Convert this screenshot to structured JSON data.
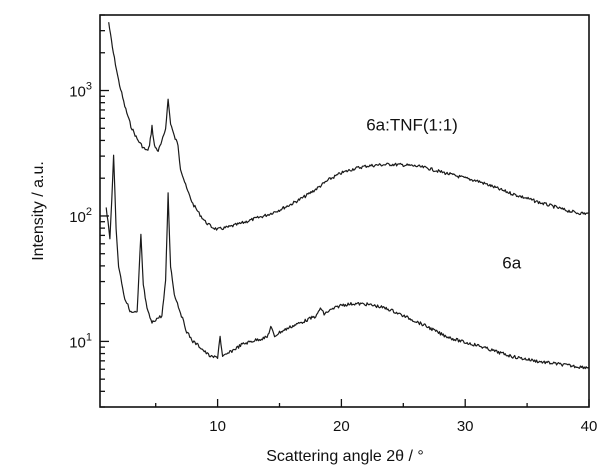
{
  "chart_data": {
    "type": "line",
    "xlabel": "Scattering angle 2θ / °",
    "ylabel": "Intensity / a.u.",
    "xlim": [
      0.5,
      40
    ],
    "ylim": [
      3,
      4000
    ],
    "yscale": "log",
    "grid": false,
    "x_ticks": [
      10,
      20,
      30,
      40
    ],
    "x_tick_labels": [
      "10",
      "20",
      "30",
      "40"
    ],
    "y_ticks": [
      10,
      100,
      1000
    ],
    "y_tick_labels": [
      {
        "base": "10",
        "exp": "1"
      },
      {
        "base": "10",
        "exp": "2"
      },
      {
        "base": "10",
        "exp": "3"
      }
    ],
    "series": [
      {
        "name": "6a:TNF(1:1)",
        "label_at": [
          22,
          480
        ],
        "points": [
          [
            1.2,
            3500
          ],
          [
            1.5,
            2200
          ],
          [
            2.0,
            1200
          ],
          [
            2.5,
            750
          ],
          [
            3.0,
            520
          ],
          [
            3.5,
            410
          ],
          [
            4.0,
            350
          ],
          [
            4.3,
            330
          ],
          [
            4.5,
            360
          ],
          [
            4.7,
            520
          ],
          [
            4.9,
            360
          ],
          [
            5.2,
            330
          ],
          [
            5.5,
            390
          ],
          [
            5.8,
            500
          ],
          [
            6.0,
            850
          ],
          [
            6.2,
            550
          ],
          [
            6.5,
            430
          ],
          [
            6.8,
            370
          ],
          [
            7.0,
            240
          ],
          [
            7.5,
            165
          ],
          [
            8.0,
            125
          ],
          [
            8.5,
            105
          ],
          [
            9.0,
            90
          ],
          [
            9.5,
            82
          ],
          [
            10,
            78
          ],
          [
            11,
            82
          ],
          [
            12,
            88
          ],
          [
            13,
            95
          ],
          [
            14,
            102
          ],
          [
            15,
            112
          ],
          [
            16,
            125
          ],
          [
            17,
            142
          ],
          [
            18,
            165
          ],
          [
            19,
            195
          ],
          [
            20,
            220
          ],
          [
            21,
            238
          ],
          [
            22,
            250
          ],
          [
            23,
            255
          ],
          [
            24,
            258
          ],
          [
            25,
            255
          ],
          [
            26,
            250
          ],
          [
            27,
            240
          ],
          [
            28,
            225
          ],
          [
            29,
            212
          ],
          [
            30,
            200
          ],
          [
            31,
            190
          ],
          [
            32,
            175
          ],
          [
            33,
            160
          ],
          [
            34,
            148
          ],
          [
            35,
            138
          ],
          [
            36,
            128
          ],
          [
            37,
            120
          ],
          [
            38,
            112
          ],
          [
            39,
            106
          ],
          [
            40,
            104
          ]
        ]
      },
      {
        "name": "6a",
        "label_at": [
          33,
          38
        ],
        "points": [
          [
            1.0,
            120
          ],
          [
            1.3,
            65
          ],
          [
            1.6,
            300
          ],
          [
            1.8,
            80
          ],
          [
            2.0,
            40
          ],
          [
            2.5,
            22
          ],
          [
            3.0,
            17
          ],
          [
            3.5,
            17
          ],
          [
            3.8,
            70
          ],
          [
            4.0,
            28
          ],
          [
            4.3,
            18
          ],
          [
            4.7,
            14
          ],
          [
            5.0,
            15
          ],
          [
            5.5,
            16
          ],
          [
            5.8,
            30
          ],
          [
            6.0,
            150
          ],
          [
            6.2,
            40
          ],
          [
            6.5,
            24
          ],
          [
            7.0,
            17
          ],
          [
            7.5,
            12
          ],
          [
            8.0,
            10
          ],
          [
            8.5,
            9.2
          ],
          [
            9.0,
            8.2
          ],
          [
            9.5,
            7.5
          ],
          [
            10.0,
            7.5
          ],
          [
            10.2,
            11
          ],
          [
            10.4,
            7.5
          ],
          [
            11,
            8.2
          ],
          [
            12,
            9.5
          ],
          [
            13,
            10.2
          ],
          [
            14,
            10.8
          ],
          [
            14.3,
            13
          ],
          [
            14.6,
            11
          ],
          [
            15,
            11.8
          ],
          [
            16,
            13.2
          ],
          [
            17,
            14.5
          ],
          [
            18,
            16
          ],
          [
            18.3,
            18.5
          ],
          [
            18.6,
            16.5
          ],
          [
            19,
            17.5
          ],
          [
            20,
            19.5
          ],
          [
            21,
            20
          ],
          [
            22,
            19.8
          ],
          [
            23,
            19
          ],
          [
            24,
            17.8
          ],
          [
            25,
            16
          ],
          [
            26,
            14.5
          ],
          [
            27,
            13
          ],
          [
            28,
            11.5
          ],
          [
            29,
            10.5
          ],
          [
            30,
            9.8
          ],
          [
            31,
            9.3
          ],
          [
            32,
            8.6
          ],
          [
            33,
            8.0
          ],
          [
            34,
            7.5
          ],
          [
            35,
            7.2
          ],
          [
            36,
            6.9
          ],
          [
            37,
            6.7
          ],
          [
            38,
            6.5
          ],
          [
            39,
            6.3
          ],
          [
            40,
            6.2
          ]
        ]
      }
    ]
  }
}
